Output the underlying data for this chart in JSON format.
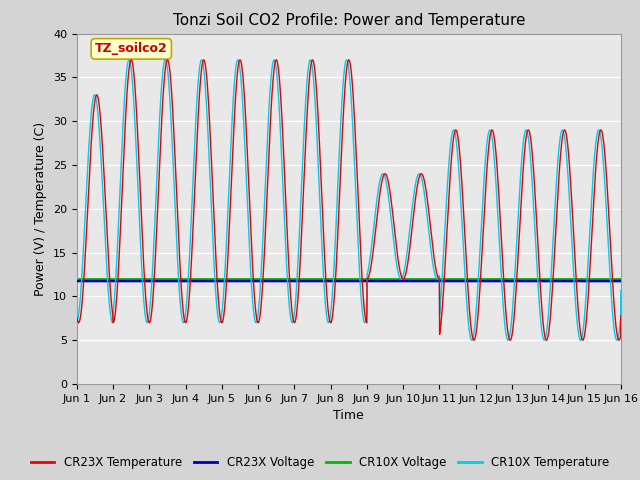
{
  "title": "Tonzi Soil CO2 Profile: Power and Temperature",
  "xlabel": "Time",
  "ylabel": "Power (V) / Temperature (C)",
  "ylim": [
    0,
    40
  ],
  "xlim": [
    0,
    15
  ],
  "xtick_labels": [
    "Jun 1",
    "Jun 2",
    "Jun 3",
    "Jun 4",
    "Jun 5",
    "Jun 6",
    "Jun 7",
    "Jun 8",
    "Jun 9",
    "Jun 10",
    "Jun 11",
    "Jun 12",
    "Jun 13",
    "Jun 14",
    "Jun 15",
    "Jun 16"
  ],
  "ytick_values": [
    0,
    5,
    10,
    15,
    20,
    25,
    30,
    35,
    40
  ],
  "cr23x_temp_color": "#ee0000",
  "cr23x_volt_color": "#0000bb",
  "cr10x_volt_color": "#00bb00",
  "cr10x_temp_color": "#00ccee",
  "voltage_cr23x": 11.75,
  "voltage_cr10x": 11.95,
  "annotation_text": "TZ_soilco2",
  "annotation_bg": "#ffffcc",
  "annotation_border": "#bbaa00",
  "bg_color": "#d4d4d4",
  "plot_bg_color": "#e8e8e8",
  "legend_labels": [
    "CR23X Temperature",
    "CR23X Voltage",
    "CR10X Voltage",
    "CR10X Temperature"
  ],
  "title_fontsize": 11,
  "axis_fontsize": 9,
  "tick_fontsize": 8
}
